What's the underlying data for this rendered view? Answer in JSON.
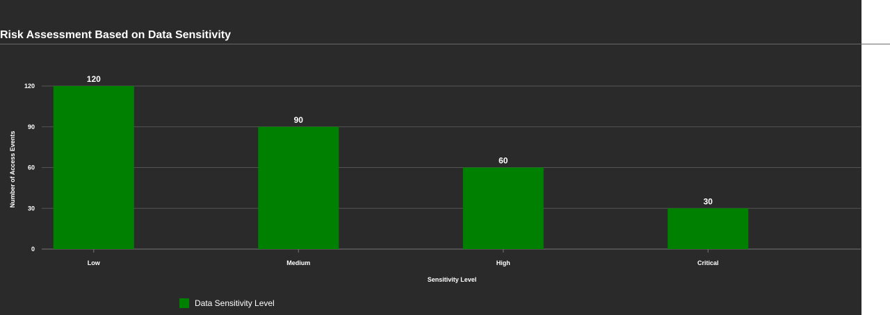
{
  "chart_data": {
    "type": "bar",
    "title": "Risk Assessment Based on Data Sensitivity",
    "xlabel": "Sensitivity Level",
    "ylabel": "Number of Access Events",
    "categories": [
      "Low",
      "Medium",
      "High",
      "Critical"
    ],
    "series": [
      {
        "name": "Data Sensitivity Level",
        "values": [
          120,
          90,
          60,
          30
        ]
      }
    ],
    "ylim": [
      0,
      120
    ],
    "yticks": [
      0,
      30,
      60,
      90,
      120
    ],
    "grid": true,
    "legend_position": "bottom-left",
    "colors": {
      "bar": "#008000",
      "grid": "#555555",
      "text": "#ffffff",
      "background": "#2a2a2a"
    }
  }
}
